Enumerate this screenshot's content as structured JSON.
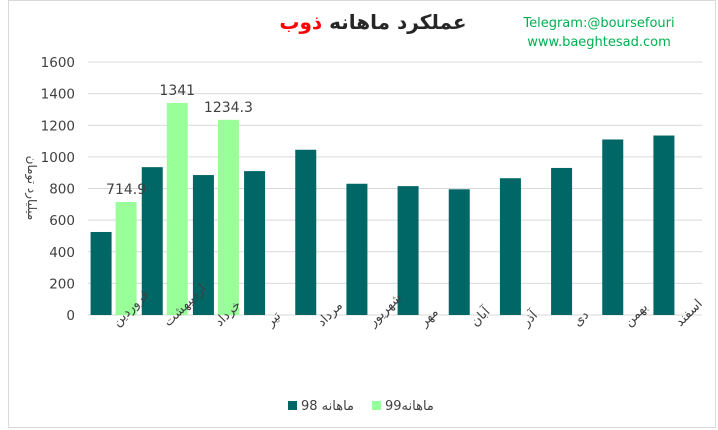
{
  "title": {
    "prefix": "عملکرد ماهانه",
    "highlight": "ذوب"
  },
  "promo": {
    "line1": "Telegram:@boursefouri",
    "line2": "www.baeghtesad.com"
  },
  "colors": {
    "series98": "#006666",
    "series99": "#99ff99",
    "grid": "#d9d9d9",
    "title_highlight": "#ff0000",
    "promo": "#00b050"
  },
  "chart_data": {
    "type": "bar",
    "title": "عملکرد ماهانه ذوب",
    "ylabel": "میلیارد تومان",
    "xlabel": "",
    "ylim": [
      0,
      1600
    ],
    "yticks": [
      0,
      200,
      400,
      600,
      800,
      1000,
      1200,
      1400,
      1600
    ],
    "grid": true,
    "legend": "bottom",
    "categories": [
      "فروردین",
      "اردیبهشت",
      "خرداد",
      "تیر",
      "مرداد",
      "شهریور",
      "مهر",
      "آبان",
      "آذر",
      "دی",
      "بهمن",
      "اسفند"
    ],
    "series": [
      {
        "name": "ماهانه 98",
        "color": "#006666",
        "values": [
          525,
          935,
          885,
          910,
          1045,
          830,
          815,
          795,
          865,
          930,
          1110,
          1135
        ]
      },
      {
        "name": "ماهانه99",
        "color": "#99ff99",
        "values": [
          714.9,
          1341,
          1234.3,
          null,
          null,
          null,
          null,
          null,
          null,
          null,
          null,
          null
        ],
        "labels": [
          "714.9",
          "1341",
          "1234.3"
        ]
      }
    ]
  }
}
